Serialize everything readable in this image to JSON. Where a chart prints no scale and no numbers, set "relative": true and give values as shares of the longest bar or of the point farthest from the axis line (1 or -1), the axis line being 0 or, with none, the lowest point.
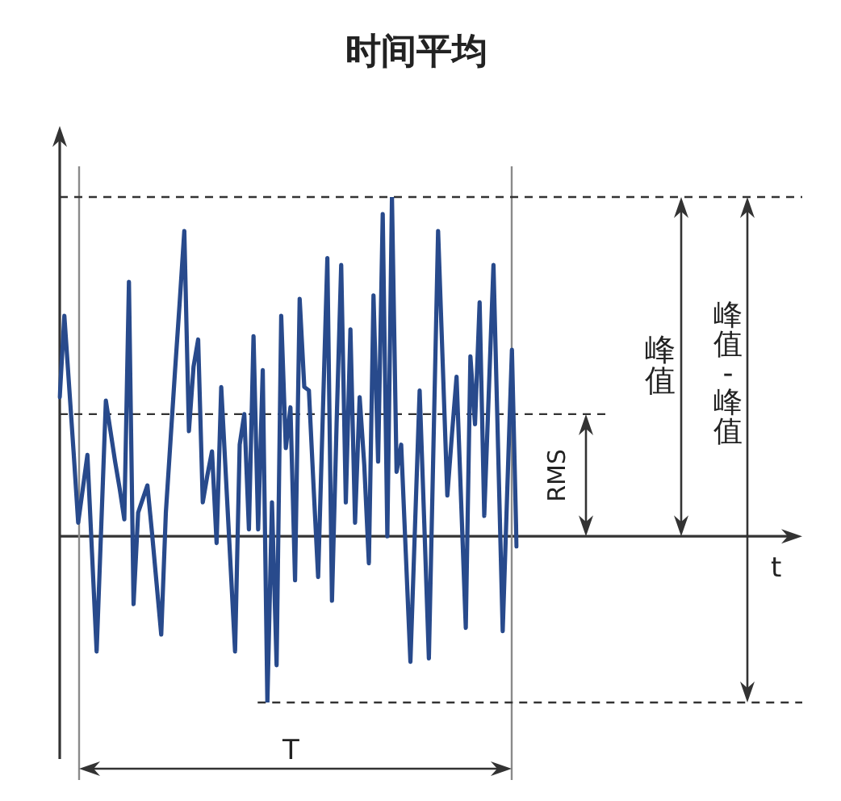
{
  "chart_data": {
    "type": "line",
    "title": "时间平均",
    "relative": true,
    "marker": "none",
    "categories": [
      null,
      null,
      null,
      null,
      null,
      null,
      null,
      null,
      null,
      null,
      null,
      null,
      null,
      null,
      null,
      null,
      null,
      null,
      null,
      null,
      null,
      null,
      null,
      null,
      null,
      null,
      null,
      null,
      null,
      null,
      null,
      null,
      null,
      null,
      null,
      null,
      null,
      null,
      null,
      null,
      null,
      null,
      null,
      null,
      null,
      null,
      null,
      null,
      null,
      null,
      null,
      null,
      null,
      null,
      null,
      null,
      null,
      null,
      null,
      null,
      null,
      null,
      null,
      null,
      null,
      null,
      null,
      null,
      null,
      null,
      null,
      null,
      null,
      null,
      null,
      null,
      null,
      null,
      null,
      null,
      null,
      null,
      null,
      null,
      null,
      null,
      null,
      null,
      null,
      null,
      null,
      null,
      null,
      null,
      null,
      null,
      null,
      null,
      null,
      null
    ],
    "series": [
      {
        "color": "#284a8c",
        "values": [
          0.41,
          0.65,
          0.45,
          0.25,
          0.04,
          0.14,
          0.24,
          -0.05,
          -0.34,
          0.03,
          0.4,
          0.31,
          0.22,
          0.14,
          0.05,
          0.75,
          -0.2,
          0.07,
          0.11,
          0.15,
          0.01,
          -0.14,
          -0.29,
          0.07,
          0.28,
          0.49,
          0.69,
          0.9,
          0.31,
          0.5,
          0.58,
          0.1,
          0.18,
          0.25,
          -0.02,
          0.44,
          0.18,
          -0.08,
          -0.34,
          0.27,
          0.36,
          0.02,
          0.59,
          0.02,
          0.49,
          -0.49,
          0.1,
          -0.38,
          0.65,
          0.26,
          0.38,
          -0.13,
          0.7,
          0.44,
          0.43,
          0.15,
          -0.12,
          0.35,
          0.82,
          -0.19,
          0.33,
          0.8,
          0.1,
          0.61,
          0.04,
          0.41,
          0.21,
          -0.08,
          0.71,
          0.22,
          0.95,
          0,
          1,
          0.19,
          0.27,
          -0.05,
          -0.37,
          0.03,
          0.43,
          0.04,
          -0.36,
          0.27,
          0.9,
          0.51,
          0.12,
          0.3,
          0.47,
          0.1,
          -0.27,
          0.53,
          0.33,
          0.69,
          0.06,
          0.43,
          0.8,
          0.26,
          -0.28,
          0.14,
          0.55,
          -0.03
        ]
      }
    ],
    "ref_lines": [
      {
        "axis": "y",
        "value": 1,
        "line_style": "dashed",
        "color": "#333333"
      },
      {
        "axis": "y",
        "value": 0.36,
        "line_style": "dashed",
        "color": "#333333"
      },
      {
        "axis": "y",
        "value": -0.49,
        "line_style": "dashed",
        "color": "#333333"
      }
    ],
    "annotations": [
      "峰值",
      "RMS",
      "峰值-峰值",
      "T",
      "t"
    ]
  }
}
